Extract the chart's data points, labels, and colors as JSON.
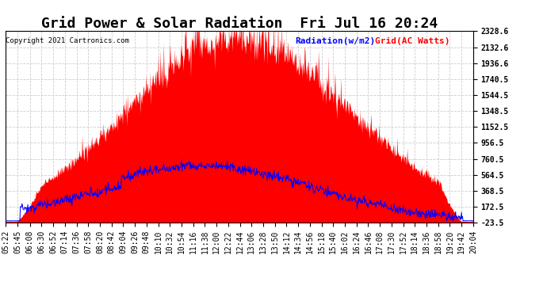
{
  "title": "Grid Power & Solar Radiation  Fri Jul 16 20:24",
  "copyright": "Copyright 2021 Cartronics.com",
  "legend_radiation": "Radiation(w/m2)",
  "legend_grid": "Grid(AC Watts)",
  "radiation_color": "blue",
  "grid_color": "red",
  "grid_fill_color": "red",
  "background_color": "white",
  "plot_bg_color": "white",
  "yticks": [
    -23.5,
    172.5,
    368.5,
    564.5,
    760.5,
    956.5,
    1152.5,
    1348.5,
    1544.5,
    1740.5,
    1936.6,
    2132.6,
    2328.6
  ],
  "ymin": -23.5,
  "ymax": 2328.6,
  "title_fontsize": 13,
  "axis_fontsize": 7,
  "label_fontsize": 8,
  "grid_color_style": "#cccccc",
  "grid_linestyle": "--",
  "grid_linewidth": 0.6,
  "xtick_rotation": 90,
  "num_points": 880,
  "xtick_labels": [
    "05:22",
    "05:45",
    "06:08",
    "06:30",
    "06:52",
    "07:14",
    "07:36",
    "07:58",
    "08:20",
    "08:42",
    "09:04",
    "09:26",
    "09:48",
    "10:10",
    "10:32",
    "10:54",
    "11:16",
    "11:38",
    "12:00",
    "12:22",
    "12:44",
    "13:06",
    "13:28",
    "13:50",
    "14:12",
    "14:34",
    "14:56",
    "15:18",
    "15:40",
    "16:02",
    "16:24",
    "16:46",
    "17:08",
    "17:30",
    "17:52",
    "18:14",
    "18:36",
    "18:58",
    "19:20",
    "19:42",
    "20:04"
  ]
}
